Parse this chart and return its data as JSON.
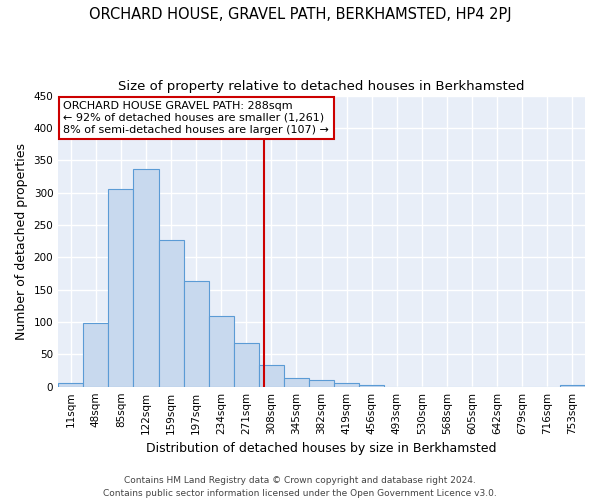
{
  "title": "ORCHARD HOUSE, GRAVEL PATH, BERKHAMSTED, HP4 2PJ",
  "subtitle": "Size of property relative to detached houses in Berkhamsted",
  "xlabel": "Distribution of detached houses by size in Berkhamsted",
  "ylabel": "Number of detached properties",
  "bin_labels": [
    "11sqm",
    "48sqm",
    "85sqm",
    "122sqm",
    "159sqm",
    "197sqm",
    "234sqm",
    "271sqm",
    "308sqm",
    "345sqm",
    "382sqm",
    "419sqm",
    "456sqm",
    "493sqm",
    "530sqm",
    "568sqm",
    "605sqm",
    "642sqm",
    "679sqm",
    "716sqm",
    "753sqm"
  ],
  "bar_heights": [
    5,
    99,
    305,
    337,
    227,
    164,
    109,
    68,
    33,
    14,
    11,
    6,
    2,
    0,
    0,
    0,
    0,
    0,
    0,
    0,
    2
  ],
  "bar_color": "#c8d9ee",
  "bar_edge_color": "#5b9bd5",
  "vline_x": 7.72,
  "vline_color": "#cc0000",
  "annotation_text": "ORCHARD HOUSE GRAVEL PATH: 288sqm\n← 92% of detached houses are smaller (1,261)\n8% of semi-detached houses are larger (107) →",
  "annotation_box_color": "#ffffff",
  "annotation_box_edge_color": "#cc0000",
  "ylim": [
    0,
    450
  ],
  "yticks": [
    0,
    50,
    100,
    150,
    200,
    250,
    300,
    350,
    400,
    450
  ],
  "footer_line1": "Contains HM Land Registry data © Crown copyright and database right 2024.",
  "footer_line2": "Contains public sector information licensed under the Open Government Licence v3.0.",
  "background_color": "#ffffff",
  "plot_bg_color": "#e8eef8",
  "grid_color": "#ffffff",
  "title_fontsize": 10.5,
  "subtitle_fontsize": 9.5,
  "axis_label_fontsize": 9,
  "tick_fontsize": 7.5,
  "footer_fontsize": 6.5,
  "annot_fontsize": 8
}
